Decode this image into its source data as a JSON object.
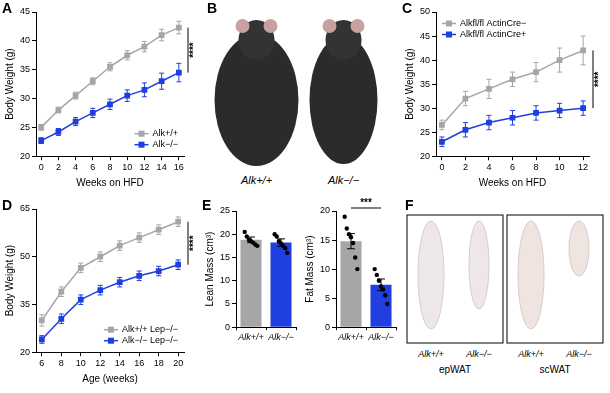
{
  "chart_data": [
    {
      "panel": "A",
      "type": "line",
      "x_label": "Weeks on HFD",
      "y_label": "Body Weight (g)",
      "x": [
        0,
        2,
        4,
        6,
        8,
        10,
        12,
        14,
        16
      ],
      "xlim": [
        -0.6,
        16.6
      ],
      "xticks": [
        0,
        2,
        4,
        6,
        8,
        10,
        12,
        14,
        16
      ],
      "ylim": [
        20,
        45
      ],
      "yticks": [
        20,
        25,
        30,
        35,
        40,
        45
      ],
      "grid": false,
      "legend": "lower right",
      "significance": "****",
      "series": [
        {
          "name": "Alk+/+",
          "color": "#a6a6a6",
          "marker": "square",
          "values": [
            25,
            28,
            30.5,
            33,
            35.5,
            37.5,
            39,
            41,
            42.3
          ],
          "errors": [
            0.5,
            0.5,
            0.6,
            0.6,
            0.7,
            0.8,
            0.9,
            1,
            1.1
          ]
        },
        {
          "name": "Alk−/−",
          "color": "#1f3fe0",
          "marker": "square",
          "values": [
            22.7,
            24.2,
            26,
            27.5,
            29,
            30.5,
            31.5,
            33,
            34.5
          ],
          "errors": [
            0.5,
            0.6,
            0.7,
            0.8,
            0.9,
            1,
            1.2,
            1.4,
            1.6
          ]
        }
      ]
    },
    {
      "panel": "C",
      "type": "line",
      "x_label": "Weeks on HFD",
      "y_label": "Body Weight (g)",
      "x": [
        0,
        2,
        4,
        6,
        8,
        10,
        12
      ],
      "xlim": [
        -0.5,
        12.5
      ],
      "xticks": [
        0,
        2,
        4,
        6,
        8,
        10,
        12
      ],
      "ylim": [
        20,
        50
      ],
      "yticks": [
        20,
        25,
        30,
        35,
        40,
        45,
        50
      ],
      "grid": false,
      "legend": "upper left",
      "significance": "****",
      "series": [
        {
          "name": "Alkfl/fl ActinCre−",
          "color": "#a6a6a6",
          "marker": "square",
          "values": [
            26.5,
            32,
            34,
            36,
            37.5,
            40,
            42
          ],
          "errors": [
            1,
            1.5,
            2,
            1.5,
            2,
            2.5,
            3
          ]
        },
        {
          "name": "Alkfl/fl ActinCre+",
          "color": "#1f3fe0",
          "marker": "square",
          "values": [
            23,
            25.5,
            27,
            28,
            29,
            29.5,
            30
          ],
          "errors": [
            1,
            1.5,
            1.5,
            1.5,
            1.5,
            1.5,
            1.5
          ]
        }
      ]
    },
    {
      "panel": "D",
      "type": "line",
      "x_label": "Age (weeks)",
      "y_label": "Body Weight (g)",
      "x": [
        6,
        8,
        10,
        12,
        14,
        16,
        18,
        20
      ],
      "xlim": [
        5.4,
        20.6
      ],
      "xticks": [
        6,
        8,
        10,
        12,
        14,
        16,
        18,
        20
      ],
      "ylim": [
        20,
        65
      ],
      "yticks": [
        20,
        35,
        50,
        65
      ],
      "grid": false,
      "legend": "lower right",
      "significance": "****",
      "series": [
        {
          "name": "Alk+/+ Lep−/−",
          "color": "#a6a6a6",
          "marker": "square",
          "values": [
            30,
            39,
            46.5,
            50,
            53.5,
            56,
            58.5,
            61
          ],
          "errors": [
            1.8,
            1.5,
            1.5,
            1.5,
            1.5,
            1.5,
            1.5,
            1.5
          ]
        },
        {
          "name": "Alk−/− Lep−/−",
          "color": "#1f3fe0",
          "marker": "square",
          "values": [
            24,
            30.5,
            36.5,
            39.5,
            42,
            44,
            45.5,
            47.5
          ],
          "errors": [
            1.2,
            1.5,
            1.5,
            1.5,
            1.5,
            1.5,
            1.5,
            1.5
          ]
        }
      ]
    },
    {
      "panel": "E",
      "type": "bar",
      "y_label": "Lean Mass (cm³)",
      "categories": [
        "Alk+/+",
        "Alk−/−"
      ],
      "values": [
        18.8,
        18.2
      ],
      "errors": [
        0.6,
        0.8
      ],
      "colors": [
        "#a6a6a6",
        "#1f3fe0"
      ],
      "points": [
        [
          20.5,
          19.5,
          18.8,
          18.5,
          18.2,
          17.8,
          17.5
        ],
        [
          20,
          19.5,
          18.5,
          18,
          17.5,
          17,
          16
        ]
      ],
      "ylim": [
        0,
        25
      ],
      "yticks": [
        0,
        5,
        10,
        15,
        20,
        25
      ],
      "grid": false
    },
    {
      "type": "bar",
      "y_label": "Fat Mass (cm³)",
      "categories": [
        "Alk+/+",
        "Alk−/−"
      ],
      "values": [
        14.8,
        7.3
      ],
      "errors": [
        1.3,
        1
      ],
      "colors": [
        "#a6a6a6",
        "#1f3fe0"
      ],
      "points": [
        [
          19,
          17,
          16,
          15.5,
          14.5,
          12,
          10
        ],
        [
          10,
          9,
          8,
          7,
          6.5,
          5.5,
          4
        ]
      ],
      "ylim": [
        0,
        20
      ],
      "yticks": [
        0,
        5,
        10,
        15,
        20
      ],
      "grid": false,
      "significance": "***"
    }
  ],
  "image_panels": [
    {
      "panel": "B",
      "labels": [
        "Alk+/+",
        "Alk−/−"
      ]
    },
    {
      "panel": "F",
      "groups": [
        {
          "labels": [
            "Alk+/+",
            "Alk−/−"
          ],
          "caption": "epWAT"
        },
        {
          "labels": [
            "Alk+/+",
            "Alk−/−"
          ],
          "caption": "scWAT"
        }
      ]
    }
  ]
}
